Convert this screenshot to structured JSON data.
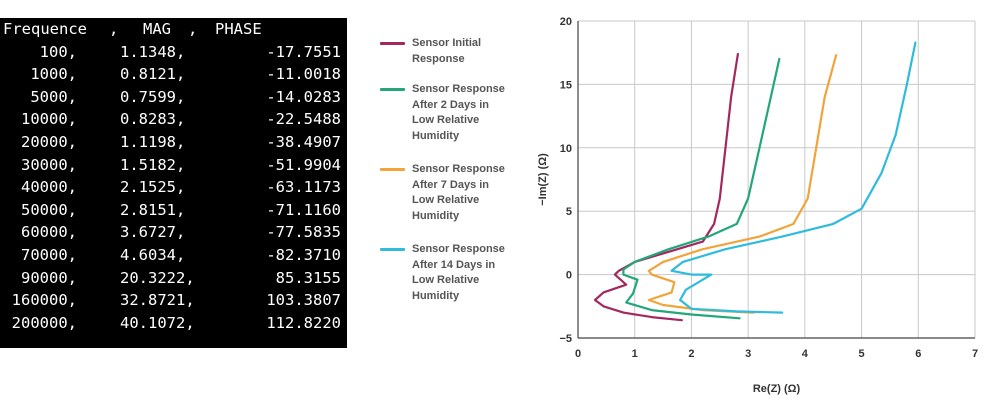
{
  "table": {
    "header": [
      "Frequence",
      ",",
      "MAG",
      ",",
      "PHASE"
    ],
    "rows": [
      [
        "100,",
        "1.1348,",
        "-17.7551"
      ],
      [
        "1000,",
        "0.8121,",
        "-11.0018"
      ],
      [
        "5000,",
        "0.7599,",
        "-14.0283"
      ],
      [
        "10000,",
        "0.8283,",
        "-22.5488"
      ],
      [
        "20000,",
        "1.1198,",
        "-38.4907"
      ],
      [
        "30000,",
        "1.5182,",
        "-51.9904"
      ],
      [
        "40000,",
        "2.1525,",
        "-63.1173"
      ],
      [
        "50000,",
        "2.8151,",
        "-71.1160"
      ],
      [
        "60000,",
        "3.6727,",
        "-77.5835"
      ],
      [
        "70000,",
        "4.6034,",
        "-82.3710"
      ],
      [
        "90000,",
        "20.3222,",
        "85.3155"
      ],
      [
        "160000,",
        "32.8721,",
        "103.3807"
      ],
      [
        "200000,",
        "40.1072,",
        "112.8220"
      ]
    ]
  },
  "colors": {
    "initial": "#a3285f",
    "day2": "#23a67a",
    "day7": "#f2a33a",
    "day14": "#2fbbdb",
    "grid": "#c8c8c8",
    "terminal_bg": "#000000"
  },
  "chart_data": {
    "type": "line",
    "xlabel": "Re(Z) (Ω)",
    "ylabel": "−Im(Z) (Ω)",
    "xlim": [
      0,
      7
    ],
    "ylim": [
      -5,
      20
    ],
    "xticks": [
      "0",
      "1",
      "2",
      "3",
      "4",
      "5",
      "6",
      "7"
    ],
    "yticks": [
      "20",
      "15",
      "10",
      "5",
      "0",
      "−5"
    ],
    "grid": true,
    "legend_position": "left",
    "series": [
      {
        "name": "Sensor Initial Response",
        "color_key": "initial",
        "x": [
          1.83,
          1.3,
          0.8,
          0.45,
          0.3,
          0.45,
          0.85,
          0.65,
          0.72,
          1.0,
          1.6,
          2.2,
          2.4,
          2.5,
          2.6,
          2.7,
          2.82
        ],
        "y": [
          -3.6,
          -3.35,
          -3.0,
          -2.5,
          -2.0,
          -1.4,
          -0.8,
          0.0,
          0.3,
          1.0,
          1.8,
          2.6,
          4.0,
          6.0,
          10.0,
          14.0,
          17.4
        ]
      },
      {
        "name": "Sensor Response After 2 Days in Low Relative Humidity",
        "color_key": "day2",
        "x": [
          2.85,
          2.0,
          1.3,
          0.85,
          0.97,
          1.05,
          0.8,
          0.8,
          1.0,
          1.6,
          2.3,
          2.8,
          3.0,
          3.2,
          3.4,
          3.55
        ],
        "y": [
          -3.45,
          -3.15,
          -2.8,
          -2.2,
          -1.5,
          -0.4,
          0.0,
          0.4,
          1.0,
          2.0,
          3.0,
          4.0,
          6.0,
          10.0,
          14.0,
          17.0
        ]
      },
      {
        "name": "Sensor Response After 7 Days in Low Relative Humidity",
        "color_key": "day7",
        "x": [
          3.1,
          2.2,
          1.5,
          1.25,
          1.65,
          1.7,
          1.3,
          1.25,
          1.5,
          2.2,
          3.2,
          3.8,
          4.05,
          4.2,
          4.35,
          4.55
        ],
        "y": [
          -3.0,
          -2.8,
          -2.4,
          -2.0,
          -1.4,
          -0.6,
          0.0,
          0.3,
          1.0,
          2.0,
          3.0,
          4.0,
          6.0,
          10.0,
          14.0,
          17.3
        ]
      },
      {
        "name": "Sensor Response After 14 Days in Low Relative Humidity",
        "color_key": "day14",
        "x": [
          3.6,
          2.8,
          2.0,
          1.8,
          1.9,
          2.35,
          2.0,
          1.65,
          1.85,
          2.6,
          3.6,
          4.5,
          5.0,
          5.35,
          5.6,
          5.8,
          5.95
        ],
        "y": [
          -3.0,
          -2.9,
          -2.7,
          -2.0,
          -1.2,
          0.0,
          0.0,
          0.3,
          1.0,
          2.0,
          3.0,
          4.0,
          5.2,
          8.0,
          11.0,
          15.0,
          18.3
        ]
      }
    ]
  },
  "legend": [
    {
      "label": "Sensor Initial Response",
      "lines": [
        "Sensor Initial",
        "Response"
      ],
      "color_key": "initial"
    },
    {
      "label": "Sensor Response After 2 Days in Low Relative Humidity",
      "lines": [
        "Sensor Response",
        "After 2 Days in",
        "Low Relative",
        "Humidity"
      ],
      "color_key": "day2"
    },
    {
      "label": "Sensor Response After 7 Days in Low Relative Humidity",
      "lines": [
        "Sensor Response",
        "After 7 Days in",
        "Low Relative",
        "Humidity"
      ],
      "color_key": "day7"
    },
    {
      "label": "Sensor Response After 14 Days in Low Relative Humidity",
      "lines": [
        "Sensor Response",
        "After 14 Days in",
        "Low Relative",
        "Humidity"
      ],
      "color_key": "day14"
    }
  ]
}
